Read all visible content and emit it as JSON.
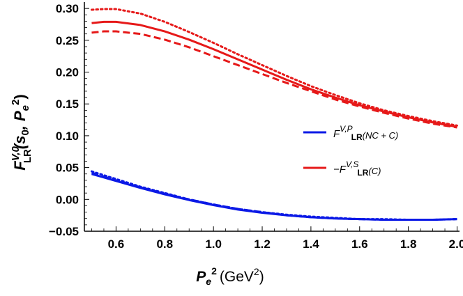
{
  "chart_data": {
    "type": "line",
    "title": "",
    "xlabel": {
      "base": "P",
      "sub": "e",
      "sup": "2",
      "unit_open": "(GeV",
      "unit_sup": "2",
      "unit_close": ")"
    },
    "ylabel": {
      "main": "F",
      "sup": "V,0",
      "sub": "LR",
      "args": "(s",
      "args_sub": "0",
      "args_mid": ", P",
      "args_sub2": "e",
      "args_sup2": "2",
      "args_close": ")"
    },
    "xlim": [
      0.47,
      2.01
    ],
    "ylim": [
      -0.05,
      0.31
    ],
    "xticks": [
      "0.6",
      "0.8",
      "1.0",
      "1.2",
      "1.4",
      "1.6",
      "1.8",
      "2.0"
    ],
    "yticks": [
      "-0.05",
      "0.00",
      "0.05",
      "0.10",
      "0.15",
      "0.20",
      "0.25",
      "0.30"
    ],
    "grid": false,
    "legend_position": "center-right",
    "legend": [
      {
        "label_main": "F",
        "label_sup": "V,P",
        "label_sub": "LR",
        "label_tail": "(NC + C)",
        "color": "#0b19e6"
      },
      {
        "label_main": "−F",
        "label_sup": "V,S",
        "label_sub": "LR",
        "label_tail": "(C)",
        "color": "#e61919"
      }
    ],
    "series": [
      {
        "color": "#e61919",
        "style": "solid",
        "x": [
          0.5,
          0.55,
          0.6,
          0.7,
          0.8,
          0.9,
          1.0,
          1.1,
          1.2,
          1.3,
          1.4,
          1.5,
          1.6,
          1.7,
          1.8,
          1.9,
          2.0
        ],
        "y": [
          0.277,
          0.279,
          0.279,
          0.274,
          0.264,
          0.251,
          0.236,
          0.22,
          0.204,
          0.188,
          0.173,
          0.16,
          0.148,
          0.138,
          0.129,
          0.121,
          0.114
        ]
      },
      {
        "color": "#e61919",
        "style": "dashed",
        "x": [
          0.5,
          0.55,
          0.6,
          0.7,
          0.8,
          0.9,
          1.0,
          1.1,
          1.2,
          1.3,
          1.4,
          1.5,
          1.6,
          1.7,
          1.8,
          1.9,
          2.0
        ],
        "y": [
          0.262,
          0.264,
          0.264,
          0.26,
          0.251,
          0.239,
          0.225,
          0.211,
          0.197,
          0.183,
          0.17,
          0.157,
          0.146,
          0.136,
          0.127,
          0.119,
          0.113
        ]
      },
      {
        "color": "#e61919",
        "style": "dotted",
        "x": [
          0.5,
          0.55,
          0.6,
          0.7,
          0.8,
          0.9,
          1.0,
          1.1,
          1.2,
          1.3,
          1.4,
          1.5,
          1.6,
          1.7,
          1.8,
          1.9,
          2.0
        ],
        "y": [
          0.298,
          0.299,
          0.299,
          0.292,
          0.279,
          0.263,
          0.246,
          0.228,
          0.211,
          0.194,
          0.178,
          0.164,
          0.151,
          0.14,
          0.131,
          0.123,
          0.116
        ]
      },
      {
        "color": "#0b19e6",
        "style": "solid",
        "x": [
          0.5,
          0.6,
          0.7,
          0.8,
          0.9,
          1.0,
          1.1,
          1.2,
          1.3,
          1.4,
          1.5,
          1.6,
          1.7,
          1.8,
          1.9,
          2.0
        ],
        "y": [
          0.04,
          0.029,
          0.018,
          0.008,
          -0.001,
          -0.009,
          -0.016,
          -0.021,
          -0.025,
          -0.028,
          -0.03,
          -0.031,
          -0.032,
          -0.032,
          -0.032,
          -0.031
        ]
      },
      {
        "color": "#0b19e6",
        "style": "dashed",
        "x": [
          0.5,
          0.6,
          0.7,
          0.8,
          0.9,
          1.0,
          1.1,
          1.2,
          1.3,
          1.4,
          1.5,
          1.6,
          1.7,
          1.8,
          1.9,
          2.0
        ],
        "y": [
          0.042,
          0.03,
          0.019,
          0.009,
          0.0,
          -0.008,
          -0.015,
          -0.02,
          -0.025,
          -0.028,
          -0.03,
          -0.031,
          -0.032,
          -0.032,
          -0.032,
          -0.031
        ]
      },
      {
        "color": "#0b19e6",
        "style": "dotted",
        "x": [
          0.5,
          0.6,
          0.7,
          0.8,
          0.9,
          1.0,
          1.1,
          1.2,
          1.3,
          1.4,
          1.5,
          1.6,
          1.7,
          1.8,
          1.9,
          2.0
        ],
        "y": [
          0.044,
          0.032,
          0.02,
          0.01,
          0.0,
          -0.008,
          -0.015,
          -0.02,
          -0.024,
          -0.027,
          -0.029,
          -0.031,
          -0.031,
          -0.032,
          -0.032,
          -0.031
        ]
      }
    ]
  }
}
